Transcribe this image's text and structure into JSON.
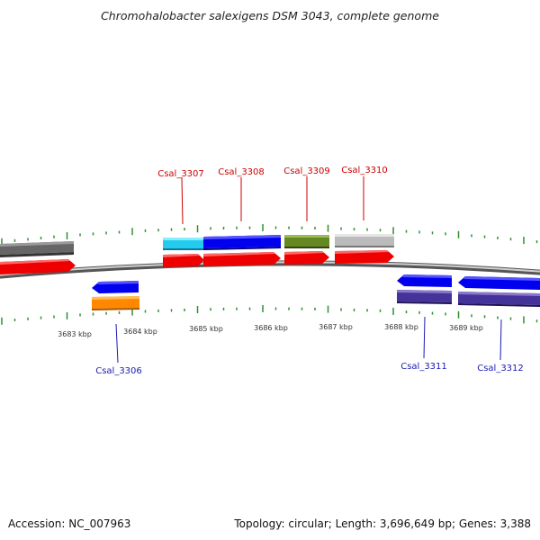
{
  "title": "Chromohalobacter salexigens DSM 3043, complete genome",
  "footer": {
    "accession": "Accession: NC_007963",
    "topology": "Topology: circular; Length: 3,696,649 bp; Genes: 3,388"
  },
  "colors": {
    "forward_label": "#cc0000",
    "reverse_label": "#1a1ab0",
    "tick": "#2f8f2f",
    "backbone": "#8a8a8a"
  },
  "scale": {
    "labels": [
      "3683 kbp",
      "3684 kbp",
      "3685 kbp",
      "3686 kbp",
      "3687 kbp",
      "3688 kbp",
      "3689 kbp"
    ]
  },
  "genes": {
    "forward": [
      {
        "name": "Csal_3307",
        "cds_color": "#ff0000",
        "feature_color": "#22ccee"
      },
      {
        "name": "Csal_3308",
        "cds_color": "#ff0000",
        "feature_color": "#0000ee"
      },
      {
        "name": "Csal_3309",
        "cds_color": "#ff0000",
        "feature_color": "#668822"
      },
      {
        "name": "Csal_3310",
        "cds_color": "#ff0000",
        "feature_color": "#bbbbbb"
      }
    ],
    "reverse": [
      {
        "name": "Csal_3306",
        "cds_color": "#0000ee",
        "feature_color": "#ff8800"
      },
      {
        "name": "Csal_3311",
        "cds_color": "#0000ee",
        "feature_color": "#443399"
      },
      {
        "name": "Csal_3312",
        "cds_color": "#0000ee",
        "feature_color": "#443399"
      }
    ]
  }
}
